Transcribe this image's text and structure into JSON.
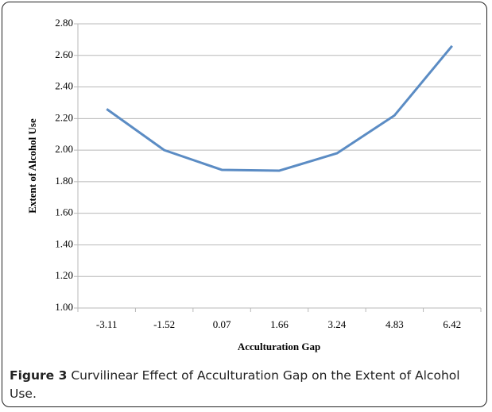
{
  "chart_data": {
    "type": "line",
    "x_label": "Acculturation Gap",
    "y_label": "Extent of Alcohol Use",
    "categories": [
      "-3.11",
      "-1.52",
      "0.07",
      "1.66",
      "3.24",
      "4.83",
      "6.42"
    ],
    "values": [
      2.26,
      2.0,
      1.875,
      1.87,
      1.98,
      2.22,
      2.66
    ],
    "color": "#5b8cc4",
    "ylim": [
      1.0,
      2.8
    ],
    "yticks": [
      {
        "value": 1.0,
        "label": "1.00"
      },
      {
        "value": 1.2,
        "label": "1.20"
      },
      {
        "value": 1.4,
        "label": "1.40"
      },
      {
        "value": 1.6,
        "label": "1.60"
      },
      {
        "value": 1.8,
        "label": "1.80"
      },
      {
        "value": 2.0,
        "label": "2.00"
      },
      {
        "value": 2.2,
        "label": "2.20"
      },
      {
        "value": 2.4,
        "label": "2.40"
      },
      {
        "value": 2.6,
        "label": "2.60"
      },
      {
        "value": 2.8,
        "label": "2.80"
      }
    ],
    "grid": true
  },
  "caption": {
    "label": "Figure 3",
    "text": "Curvilinear Effect of Acculturation Gap on the Extent of Alcohol Use."
  }
}
